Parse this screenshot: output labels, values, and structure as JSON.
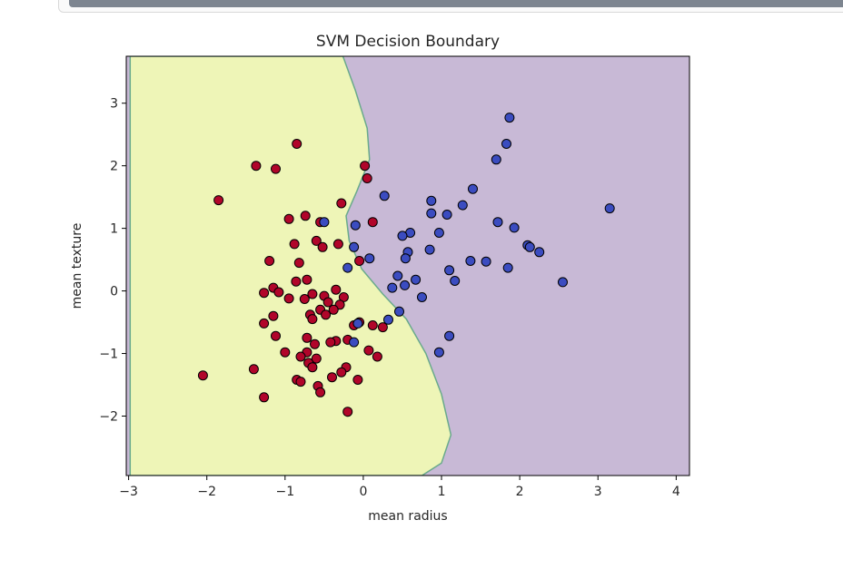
{
  "notebook": {
    "scrollbar": "horizontal-scrollbar"
  },
  "chart_data": {
    "type": "scatter",
    "title": "SVM Decision Boundary",
    "xlabel": "mean radius",
    "ylabel": "mean texture",
    "xlim": [
      -3.03,
      4.17
    ],
    "ylim": [
      -2.95,
      3.75
    ],
    "xticks": [
      -3,
      -2,
      -1,
      0,
      1,
      2,
      3,
      4
    ],
    "yticks": [
      -2,
      -1,
      0,
      1,
      2,
      3
    ],
    "xtick_labels": [
      "−3",
      "−2",
      "−1",
      "0",
      "1",
      "2",
      "3",
      "4"
    ],
    "ytick_labels": [
      "−2",
      "−1",
      "0",
      "1",
      "2",
      "3"
    ],
    "regions": [
      {
        "name": "class-0-region",
        "color": "#eef5b7"
      },
      {
        "name": "class-1-region",
        "color": "#c8b9d6"
      }
    ],
    "boundary_color": "#6aaa8c",
    "boundary": [
      [
        -2.98,
        3.75
      ],
      [
        -0.26,
        3.75
      ],
      [
        -0.1,
        3.2
      ],
      [
        0.05,
        2.6
      ],
      [
        0.08,
        2.1
      ],
      [
        -0.08,
        1.6
      ],
      [
        -0.22,
        1.2
      ],
      [
        -0.18,
        0.8
      ],
      [
        -0.02,
        0.35
      ],
      [
        0.25,
        -0.05
      ],
      [
        0.55,
        -0.45
      ],
      [
        0.8,
        -1.0
      ],
      [
        1.0,
        -1.65
      ],
      [
        1.12,
        -2.3
      ],
      [
        1.0,
        -2.75
      ],
      [
        0.75,
        -2.95
      ],
      [
        -2.98,
        -2.95
      ]
    ],
    "series": [
      {
        "name": "",
        "color": "#b1052a",
        "points": [
          [
            -0.85,
            2.35
          ],
          [
            -1.37,
            2.0
          ],
          [
            -1.12,
            1.95
          ],
          [
            0.02,
            2.0
          ],
          [
            0.05,
            1.8
          ],
          [
            -1.85,
            1.45
          ],
          [
            -0.28,
            1.4
          ],
          [
            -0.74,
            1.2
          ],
          [
            -0.95,
            1.15
          ],
          [
            -0.55,
            1.1
          ],
          [
            0.12,
            1.1
          ],
          [
            -0.6,
            0.8
          ],
          [
            -0.32,
            0.75
          ],
          [
            -0.88,
            0.75
          ],
          [
            -0.52,
            0.7
          ],
          [
            -1.2,
            0.48
          ],
          [
            -0.82,
            0.45
          ],
          [
            -0.05,
            0.48
          ],
          [
            -0.72,
            0.18
          ],
          [
            -0.86,
            0.15
          ],
          [
            -1.15,
            0.05
          ],
          [
            -1.08,
            -0.02
          ],
          [
            -1.27,
            -0.03
          ],
          [
            -0.65,
            -0.05
          ],
          [
            -0.35,
            0.02
          ],
          [
            -0.5,
            -0.08
          ],
          [
            -0.25,
            -0.1
          ],
          [
            -0.75,
            -0.13
          ],
          [
            -0.95,
            -0.12
          ],
          [
            -0.45,
            -0.18
          ],
          [
            -0.3,
            -0.22
          ],
          [
            -0.55,
            -0.3
          ],
          [
            -0.38,
            -0.3
          ],
          [
            -0.68,
            -0.38
          ],
          [
            -0.48,
            -0.38
          ],
          [
            -0.65,
            -0.45
          ],
          [
            -1.15,
            -0.4
          ],
          [
            -1.27,
            -0.52
          ],
          [
            -0.05,
            -0.5
          ],
          [
            -0.12,
            -0.55
          ],
          [
            0.12,
            -0.55
          ],
          [
            0.25,
            -0.58
          ],
          [
            -1.12,
            -0.72
          ],
          [
            -0.72,
            -0.75
          ],
          [
            -0.35,
            -0.8
          ],
          [
            -0.62,
            -0.85
          ],
          [
            -0.42,
            -0.82
          ],
          [
            -0.2,
            -0.78
          ],
          [
            -1.0,
            -0.98
          ],
          [
            -0.72,
            -0.98
          ],
          [
            -0.8,
            -1.05
          ],
          [
            -0.6,
            -1.08
          ],
          [
            0.07,
            -0.95
          ],
          [
            0.18,
            -1.05
          ],
          [
            -0.7,
            -1.15
          ],
          [
            -1.4,
            -1.25
          ],
          [
            -0.65,
            -1.22
          ],
          [
            -0.22,
            -1.22
          ],
          [
            -0.28,
            -1.3
          ],
          [
            -0.4,
            -1.38
          ],
          [
            -0.85,
            -1.42
          ],
          [
            -0.07,
            -1.42
          ],
          [
            -0.8,
            -1.45
          ],
          [
            -0.58,
            -1.52
          ],
          [
            -0.55,
            -1.62
          ],
          [
            -2.05,
            -1.35
          ],
          [
            -1.27,
            -1.7
          ],
          [
            -0.2,
            -1.93
          ]
        ]
      },
      {
        "name": "",
        "color": "#3b4cc0",
        "points": [
          [
            1.87,
            2.77
          ],
          [
            1.83,
            2.35
          ],
          [
            1.7,
            2.1
          ],
          [
            1.4,
            1.63
          ],
          [
            0.27,
            1.52
          ],
          [
            0.87,
            1.44
          ],
          [
            1.27,
            1.37
          ],
          [
            3.15,
            1.32
          ],
          [
            0.87,
            1.24
          ],
          [
            1.07,
            1.22
          ],
          [
            -0.5,
            1.1
          ],
          [
            -0.1,
            1.05
          ],
          [
            1.72,
            1.1
          ],
          [
            1.93,
            1.01
          ],
          [
            0.6,
            0.93
          ],
          [
            0.97,
            0.93
          ],
          [
            0.5,
            0.88
          ],
          [
            2.1,
            0.73
          ],
          [
            2.13,
            0.7
          ],
          [
            -0.12,
            0.7
          ],
          [
            2.25,
            0.62
          ],
          [
            0.57,
            0.62
          ],
          [
            0.85,
            0.66
          ],
          [
            0.08,
            0.52
          ],
          [
            0.54,
            0.52
          ],
          [
            1.37,
            0.48
          ],
          [
            1.57,
            0.47
          ],
          [
            -0.2,
            0.37
          ],
          [
            1.85,
            0.37
          ],
          [
            1.1,
            0.33
          ],
          [
            0.44,
            0.24
          ],
          [
            0.67,
            0.18
          ],
          [
            2.55,
            0.14
          ],
          [
            1.17,
            0.16
          ],
          [
            0.53,
            0.09
          ],
          [
            0.37,
            0.05
          ],
          [
            0.75,
            -0.1
          ],
          [
            0.46,
            -0.33
          ],
          [
            0.32,
            -0.46
          ],
          [
            -0.07,
            -0.52
          ],
          [
            1.1,
            -0.72
          ],
          [
            -0.12,
            -0.82
          ],
          [
            0.97,
            -0.98
          ]
        ]
      }
    ]
  }
}
